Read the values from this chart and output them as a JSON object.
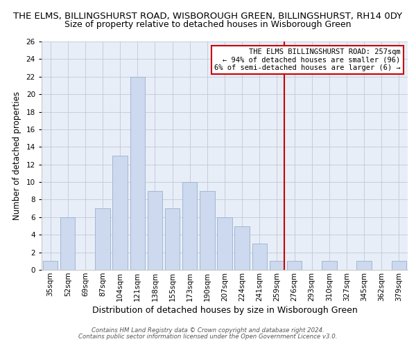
{
  "title": "THE ELMS, BILLINGSHURST ROAD, WISBOROUGH GREEN, BILLINGSHURST, RH14 0DY",
  "subtitle": "Size of property relative to detached houses in Wisborough Green",
  "xlabel": "Distribution of detached houses by size in Wisborough Green",
  "ylabel": "Number of detached properties",
  "bar_labels": [
    "35sqm",
    "52sqm",
    "69sqm",
    "87sqm",
    "104sqm",
    "121sqm",
    "138sqm",
    "155sqm",
    "173sqm",
    "190sqm",
    "207sqm",
    "224sqm",
    "241sqm",
    "259sqm",
    "276sqm",
    "293sqm",
    "310sqm",
    "327sqm",
    "345sqm",
    "362sqm",
    "379sqm"
  ],
  "bar_values": [
    1,
    6,
    0,
    7,
    13,
    22,
    9,
    7,
    10,
    9,
    6,
    5,
    3,
    1,
    1,
    0,
    1,
    0,
    1,
    0,
    1
  ],
  "bar_color": "#ccd9ee",
  "bar_edge_color": "#9ab0ce",
  "ylim": [
    0,
    26
  ],
  "yticks": [
    0,
    2,
    4,
    6,
    8,
    10,
    12,
    14,
    16,
    18,
    20,
    22,
    24,
    26
  ],
  "vline_idx": 13,
  "vline_color": "#cc0000",
  "annotation_title": "THE ELMS BILLINGSHURST ROAD: 257sqm",
  "annotation_line1": "← 94% of detached houses are smaller (96)",
  "annotation_line2": "6% of semi-detached houses are larger (6) →",
  "annotation_box_color": "#ffffff",
  "annotation_box_edge": "#cc0000",
  "footer_line1": "Contains HM Land Registry data © Crown copyright and database right 2024.",
  "footer_line2": "Contains public sector information licensed under the Open Government Licence v3.0.",
  "background_color": "#ffffff",
  "axes_bg_color": "#e8eef8",
  "grid_color": "#c0c8d8",
  "title_fontsize": 9.5,
  "subtitle_fontsize": 9,
  "xlabel_fontsize": 9,
  "ylabel_fontsize": 8.5,
  "tick_fontsize": 7.5,
  "annotation_fontsize": 7.5,
  "footer_fontsize": 6.2
}
